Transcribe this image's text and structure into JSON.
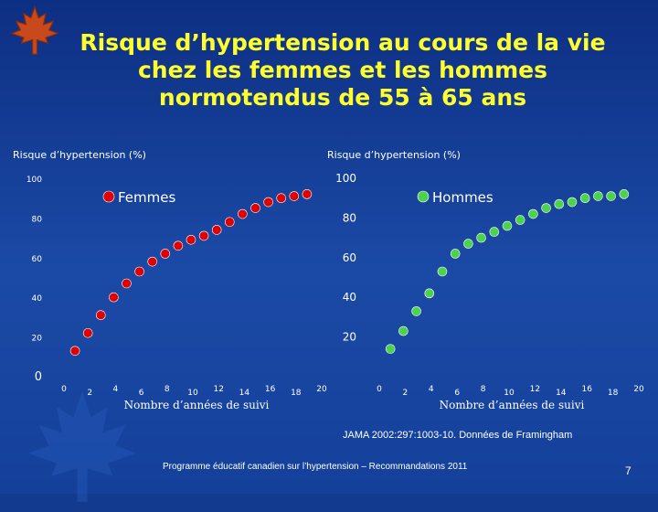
{
  "slide": {
    "title_lines": [
      "Risque d’hypertension au cours de la vie",
      "chez les femmes et les hommes",
      "normotendus de 55 à 65 ans"
    ],
    "reference": "JAMA 2002:297:1003-10. Données de Framingham",
    "footer": "Programme éducatif canadien sur l’hypertension – Recommandations 2011",
    "page_number": "7",
    "colors": {
      "title": "#ffff2e",
      "background": "#1b4aa6",
      "text": "#ffffff"
    },
    "icons": [
      "maple-leaf-icon"
    ]
  },
  "chart_data": [
    {
      "type": "scatter",
      "ylabel": "Risque d’hypertension (%)",
      "xlabel": "Nombre d’années de suivi",
      "xlim": [
        0,
        20
      ],
      "ylim": [
        0,
        100
      ],
      "x_ticks": [
        "0",
        "2",
        "4",
        "6",
        "8",
        "10",
        "12",
        "14",
        "16",
        "18",
        "20"
      ],
      "y_ticks": [
        "0",
        "20",
        "40",
        "60",
        "80",
        "100"
      ],
      "series": [
        {
          "name": "Femmes",
          "color": "#e00000",
          "x": [
            1,
            2,
            3,
            4,
            5,
            6,
            7,
            8,
            9,
            10,
            11,
            12,
            13,
            14,
            15,
            16,
            17,
            18,
            19
          ],
          "y": [
            13,
            22,
            31,
            40,
            47,
            53,
            58,
            62,
            66,
            69,
            71,
            74,
            78,
            82,
            85,
            88,
            90,
            91,
            92
          ]
        }
      ]
    },
    {
      "type": "scatter",
      "ylabel": "Risque d’hypertension (%)",
      "xlabel": "Nombre d’années de suivi",
      "xlim": [
        0,
        20
      ],
      "ylim": [
        0,
        100
      ],
      "x_ticks": [
        "0",
        "2",
        "4",
        "6",
        "8",
        "10",
        "12",
        "14",
        "16",
        "18",
        "20"
      ],
      "y_ticks": [
        "20",
        "40",
        "60",
        "80",
        "100"
      ],
      "series": [
        {
          "name": "Hommes",
          "color": "#4cd24c",
          "x": [
            1,
            2,
            3,
            4,
            5,
            6,
            7,
            8,
            9,
            10,
            11,
            12,
            13,
            14,
            15,
            16,
            17,
            18,
            19
          ],
          "y": [
            14,
            23,
            33,
            42,
            53,
            62,
            67,
            70,
            73,
            76,
            79,
            82,
            85,
            87,
            88,
            90,
            91,
            91,
            92
          ]
        }
      ]
    }
  ]
}
